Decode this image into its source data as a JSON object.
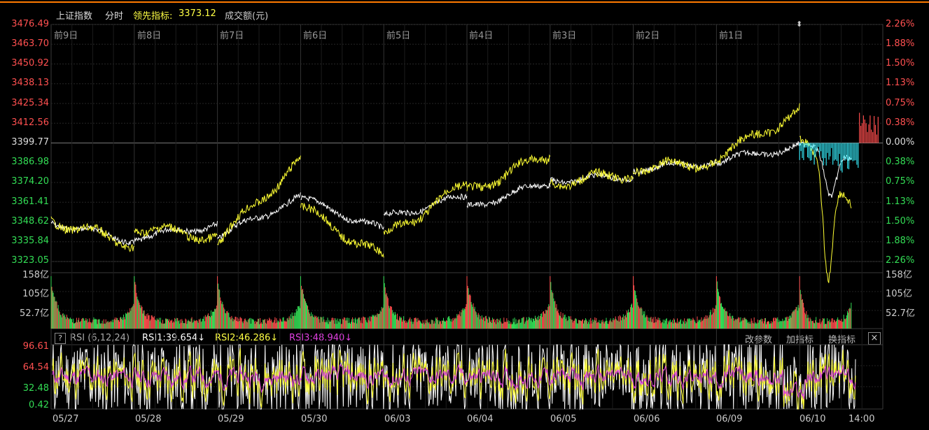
{
  "header": {
    "index_name": "上证指数",
    "mode": "分时",
    "leading_indicator_label": "领先指标:",
    "leading_indicator_value": "3373.12",
    "volume_label": "成交额(元)"
  },
  "price_axis_left": [
    "3476.49",
    "3463.70",
    "3450.92",
    "3438.13",
    "3425.34",
    "3412.56",
    "3399.77",
    "3386.98",
    "3374.20",
    "3361.41",
    "3348.62",
    "3335.84",
    "3323.05"
  ],
  "percent_axis_right": [
    "2.26%",
    "1.88%",
    "1.50%",
    "1.13%",
    "0.75%",
    "0.38%",
    "0.00%",
    "0.38%",
    "0.75%",
    "1.13%",
    "1.50%",
    "1.88%",
    "2.26%"
  ],
  "day_labels_top": [
    "前9日",
    "前8日",
    "前7日",
    "前6日",
    "前5日",
    "前4日",
    "前3日",
    "前2日",
    "前1日"
  ],
  "volume_axis": {
    "left": [
      "158亿",
      "105亿",
      "52.7亿"
    ],
    "right": [
      "158亿",
      "105亿",
      "52.7亿"
    ]
  },
  "rsi": {
    "help": "?",
    "title": "RSI (6,12,24)",
    "rsi1": "RSI1:39.654↓",
    "rsi2": "RSI2:46.286↓",
    "rsi3": "RSI3:48.940↓",
    "axis": [
      "96.61",
      "64.54",
      "32.48",
      "0.42"
    ],
    "buttons": {
      "edit": "改参数",
      "add": "加指标",
      "switch": "换指标",
      "close": "×"
    }
  },
  "date_labels": [
    "05/27",
    "05/28",
    "05/29",
    "05/30",
    "06/03",
    "06/04",
    "06/05",
    "06/06",
    "06/09",
    "06/10",
    "14:00"
  ],
  "colors": {
    "up": "#ff4d4d",
    "down": "#33dd55",
    "cyan": "#33e0ee",
    "white_line": "#ffffff",
    "yellow_line": "#ffff33",
    "magenta": "#e040e0",
    "grid": "#2a2a2a",
    "axis_red": "#ff5050",
    "axis_green": "#33dd55"
  }
}
